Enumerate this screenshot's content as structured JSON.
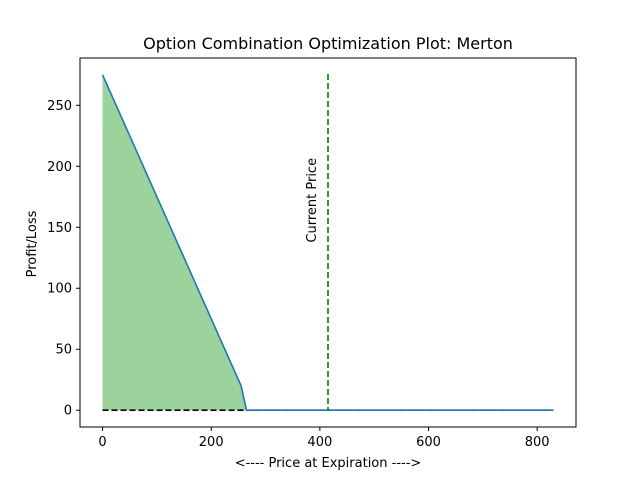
{
  "chart_data": {
    "type": "line",
    "title": "Option Combination Optimization Plot: Merton",
    "xlabel": "<---- Price at Expiration ---->",
    "ylabel": "Profit/Loss",
    "xlim": [
      -41.5,
      871.5
    ],
    "ylim": [
      -13.75,
      288.75
    ],
    "xticks": [
      0,
      200,
      400,
      600,
      800
    ],
    "yticks": [
      0,
      50,
      100,
      150,
      200,
      250
    ],
    "grid": false,
    "legend": "none",
    "series": [
      {
        "color": "#1f77b4",
        "x": [
          0,
          255,
          265,
          830
        ],
        "y": [
          275,
          20,
          0,
          0
        ]
      }
    ],
    "fill": {
      "color": "#2ca02c",
      "opacity": 0.47,
      "x_range": [
        0,
        265
      ]
    },
    "zero_line": {
      "color": "#000000",
      "style": "dashed",
      "x_range": [
        0,
        265
      ],
      "y": 0
    },
    "current_price": {
      "x": 415,
      "label": "Current Price",
      "color": "#008000",
      "style": "dashed"
    },
    "tail_dashed": {
      "color": "#1f77b4",
      "x_range": [
        265,
        830
      ],
      "y": 0
    }
  }
}
